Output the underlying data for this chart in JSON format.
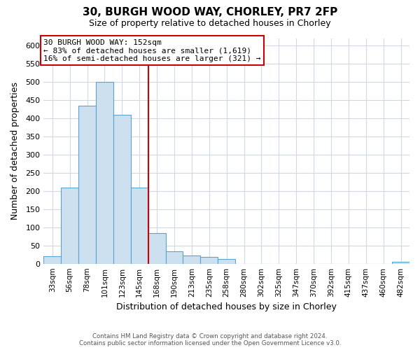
{
  "title": "30, BURGH WOOD WAY, CHORLEY, PR7 2FP",
  "subtitle": "Size of property relative to detached houses in Chorley",
  "xlabel": "Distribution of detached houses by size in Chorley",
  "ylabel": "Number of detached properties",
  "bar_labels": [
    "33sqm",
    "56sqm",
    "78sqm",
    "101sqm",
    "123sqm",
    "145sqm",
    "168sqm",
    "190sqm",
    "213sqm",
    "235sqm",
    "258sqm",
    "280sqm",
    "302sqm",
    "325sqm",
    "347sqm",
    "370sqm",
    "392sqm",
    "415sqm",
    "437sqm",
    "460sqm",
    "482sqm"
  ],
  "bar_values": [
    20,
    210,
    435,
    500,
    410,
    210,
    85,
    35,
    22,
    18,
    13,
    0,
    0,
    0,
    0,
    0,
    0,
    0,
    0,
    0,
    5
  ],
  "bar_color": "#cce0f0",
  "bar_edge_color": "#5ba3d0",
  "vline_color": "#cc0000",
  "ylim": [
    0,
    620
  ],
  "yticks": [
    0,
    50,
    100,
    150,
    200,
    250,
    300,
    350,
    400,
    450,
    500,
    550,
    600
  ],
  "annotation_title": "30 BURGH WOOD WAY: 152sqm",
  "annotation_line1": "← 83% of detached houses are smaller (1,619)",
  "annotation_line2": "16% of semi-detached houses are larger (321) →",
  "annotation_box_color": "#ffffff",
  "annotation_box_edge": "#cc0000",
  "footer_line1": "Contains HM Land Registry data © Crown copyright and database right 2024.",
  "footer_line2": "Contains public sector information licensed under the Open Government Licence v3.0.",
  "bg_color": "#ffffff",
  "grid_color": "#d0d8e8"
}
